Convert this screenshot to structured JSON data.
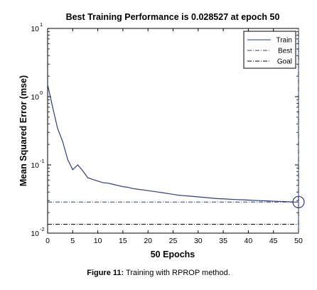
{
  "chart_data": {
    "type": "line",
    "title": "Best Training Performance is 0.028527 at epoch 50",
    "xlabel": "50 Epochs",
    "ylabel": "Mean Squared Error  (mse)",
    "xlim": [
      0,
      50
    ],
    "ylim": [
      0.01,
      10
    ],
    "yscale": "log",
    "x_ticks": [
      "0",
      "5",
      "10",
      "15",
      "20",
      "25",
      "30",
      "35",
      "40",
      "45",
      "50"
    ],
    "y_ticks": [
      {
        "base": "10",
        "exp": "-2",
        "value": 0.01
      },
      {
        "base": "10",
        "exp": "-1",
        "value": 0.1
      },
      {
        "base": "10",
        "exp": "0",
        "value": 1
      },
      {
        "base": "10",
        "exp": "1",
        "value": 10
      }
    ],
    "legend_position": "top-right",
    "series": [
      {
        "name": "Train",
        "style": "solid",
        "color": "#2b3a8c",
        "x": [
          0,
          1,
          2,
          3,
          4,
          5,
          6,
          7,
          8,
          9,
          10,
          11,
          12,
          13,
          14,
          15,
          16,
          17,
          18,
          19,
          20,
          21,
          22,
          23,
          24,
          25,
          26,
          27,
          28,
          29,
          30,
          31,
          32,
          33,
          34,
          35,
          36,
          37,
          38,
          39,
          40,
          41,
          42,
          43,
          44,
          45,
          46,
          47,
          48,
          49,
          50
        ],
        "y": [
          1.5,
          0.7,
          0.34,
          0.22,
          0.12,
          0.085,
          0.1,
          0.082,
          0.065,
          0.061,
          0.058,
          0.055,
          0.054,
          0.052,
          0.05,
          0.048,
          0.047,
          0.045,
          0.044,
          0.043,
          0.042,
          0.041,
          0.04,
          0.039,
          0.038,
          0.037,
          0.036,
          0.0355,
          0.035,
          0.0345,
          0.034,
          0.0335,
          0.033,
          0.0325,
          0.032,
          0.0318,
          0.0315,
          0.0312,
          0.031,
          0.0308,
          0.0305,
          0.0302,
          0.03,
          0.0298,
          0.0296,
          0.0294,
          0.0292,
          0.029,
          0.0288,
          0.0286,
          0.028527
        ]
      },
      {
        "name": "Best",
        "style": "dashdot",
        "color": "#2b3a8c",
        "y": 0.028527,
        "x": 50
      },
      {
        "name": "Goal",
        "style": "dashdot",
        "color": "#000000",
        "y": 0.0135
      }
    ],
    "best_point": {
      "x": 50,
      "y": 0.028527
    }
  },
  "caption": {
    "label": "Figure 11:",
    "text": " Training with RPROP method."
  }
}
